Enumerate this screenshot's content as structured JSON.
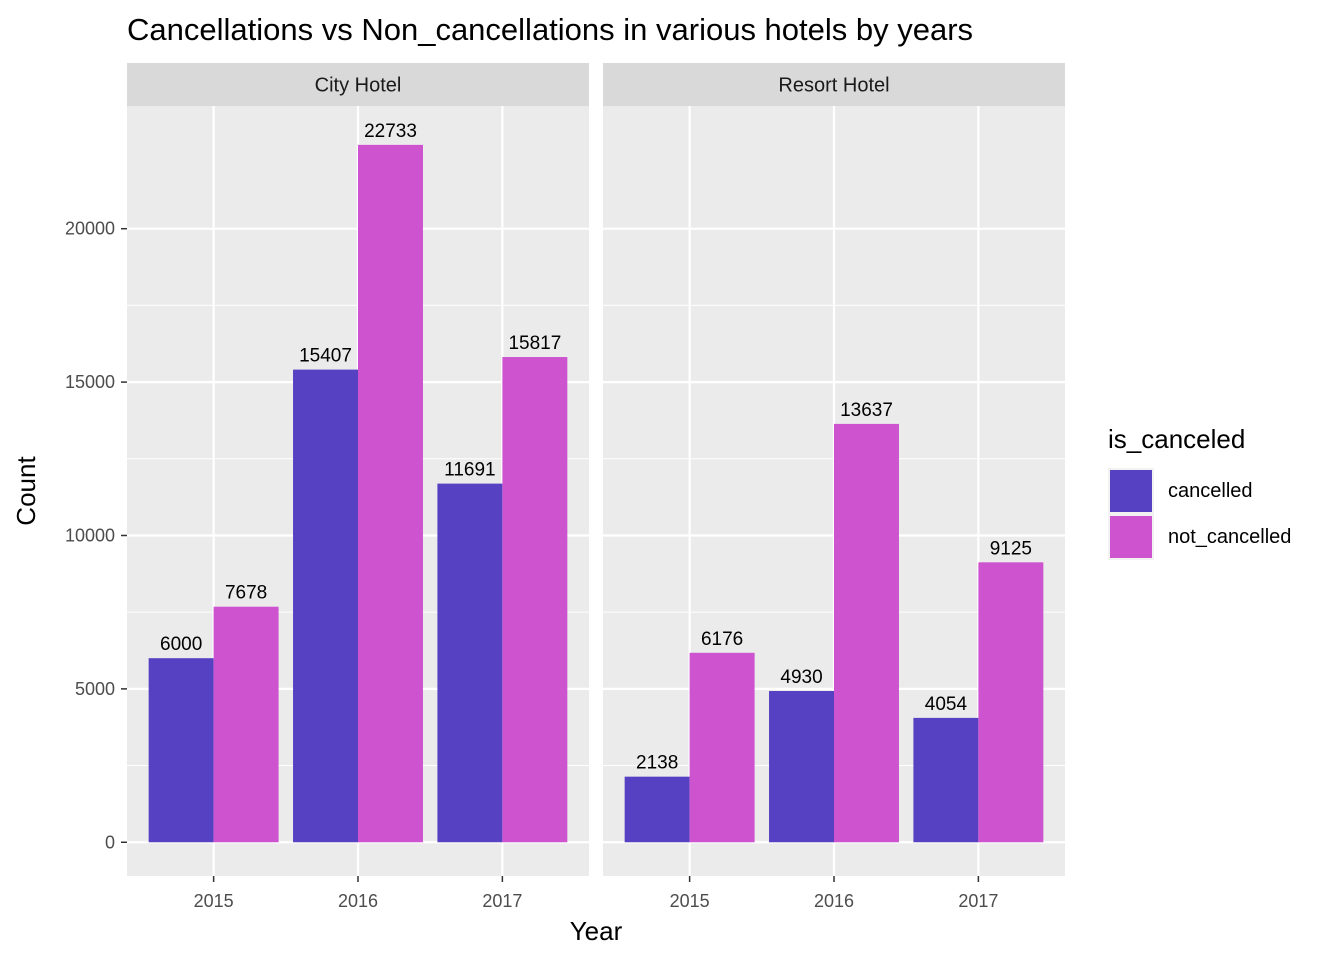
{
  "chart_data": {
    "type": "bar",
    "title": "Cancellations vs Non_cancellations in various hotels by years",
    "xlabel": "Year",
    "ylabel": "Count",
    "ylim": [
      -1100,
      24000
    ],
    "y_ticks": [
      "0",
      "5000",
      "10000",
      "15000",
      "20000"
    ],
    "grid": true,
    "legend_position": "right",
    "legend": {
      "title": "is_canceled",
      "items": [
        {
          "label": "cancelled",
          "color": "#5541c2"
        },
        {
          "label": "not_cancelled",
          "color": "#cd53cf"
        }
      ]
    },
    "panels": [
      {
        "label": "City Hotel",
        "categories": [
          "2015",
          "2016",
          "2017"
        ],
        "series": [
          {
            "name": "cancelled",
            "values": [
              6000,
              15407,
              11691
            ],
            "labels": [
              "6000",
              "15407",
              "11691"
            ]
          },
          {
            "name": "not_cancelled",
            "values": [
              7678,
              22733,
              15817
            ],
            "labels": [
              "7678",
              "22733",
              "15817"
            ]
          }
        ]
      },
      {
        "label": "Resort Hotel",
        "categories": [
          "2015",
          "2016",
          "2017"
        ],
        "series": [
          {
            "name": "cancelled",
            "values": [
              2138,
              4930,
              4054
            ],
            "labels": [
              "2138",
              "4930",
              "4054"
            ]
          },
          {
            "name": "not_cancelled",
            "values": [
              6176,
              13637,
              9125
            ],
            "labels": [
              "6176",
              "13637",
              "9125"
            ]
          }
        ]
      }
    ]
  }
}
